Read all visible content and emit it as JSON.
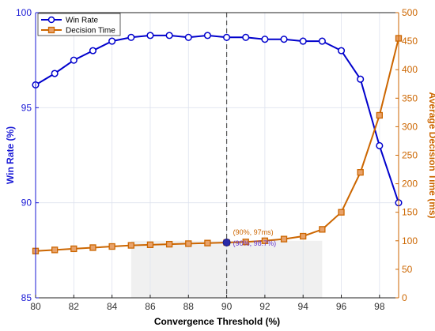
{
  "chart_data": {
    "type": "line",
    "x": [
      80,
      81,
      82,
      83,
      84,
      85,
      86,
      87,
      88,
      89,
      90,
      91,
      92,
      93,
      94,
      95,
      96,
      97,
      98,
      99
    ],
    "xlabel": "Convergence Threshold (%)",
    "xlim": [
      80,
      99
    ],
    "xticks": [
      80,
      82,
      84,
      86,
      88,
      90,
      92,
      94,
      96,
      98
    ],
    "ylabel_left": "Win Rate (%)",
    "ylim_left": [
      85,
      100
    ],
    "yticks_left": [
      85,
      90,
      95,
      100
    ],
    "ylabel_right": "Average Decision Time (ms)",
    "ylim_right": [
      0,
      500
    ],
    "yticks_right": [
      0,
      50,
      100,
      150,
      200,
      250,
      300,
      350,
      400,
      450,
      500
    ],
    "grid": true,
    "legend_position": "top-left",
    "series": [
      {
        "name": "Win Rate",
        "axis": "left",
        "marker": "circle",
        "color": "#0000cc",
        "values": [
          96.2,
          96.8,
          97.5,
          98.0,
          98.5,
          98.7,
          98.8,
          98.8,
          98.7,
          98.8,
          98.7,
          98.7,
          98.6,
          98.6,
          98.5,
          98.5,
          98.0,
          96.5,
          93.0,
          90.0
        ]
      },
      {
        "name": "Decision Time",
        "axis": "right",
        "marker": "square",
        "color": "#cc6600",
        "values": [
          82,
          84,
          86,
          88,
          90,
          92,
          93,
          94,
          95,
          96,
          97,
          98,
          100,
          103,
          108,
          120,
          150,
          220,
          320,
          455
        ]
      }
    ],
    "vline": {
      "x": 90,
      "color": "#555555",
      "style": "dashed"
    },
    "highlight_region": {
      "x_from": 85,
      "x_to": 95,
      "y_from_left": 85,
      "y_to_left": 88,
      "color": "#f0f0f0"
    },
    "annotations": [
      {
        "text": "(90%, 97ms)",
        "x": 90,
        "y": 97,
        "axis": "right",
        "color": "#cc6600"
      },
      {
        "text": "(90%, 98.7%)",
        "x": 90,
        "y": 98.7,
        "axis": "left",
        "color": "#6633cc"
      }
    ]
  }
}
